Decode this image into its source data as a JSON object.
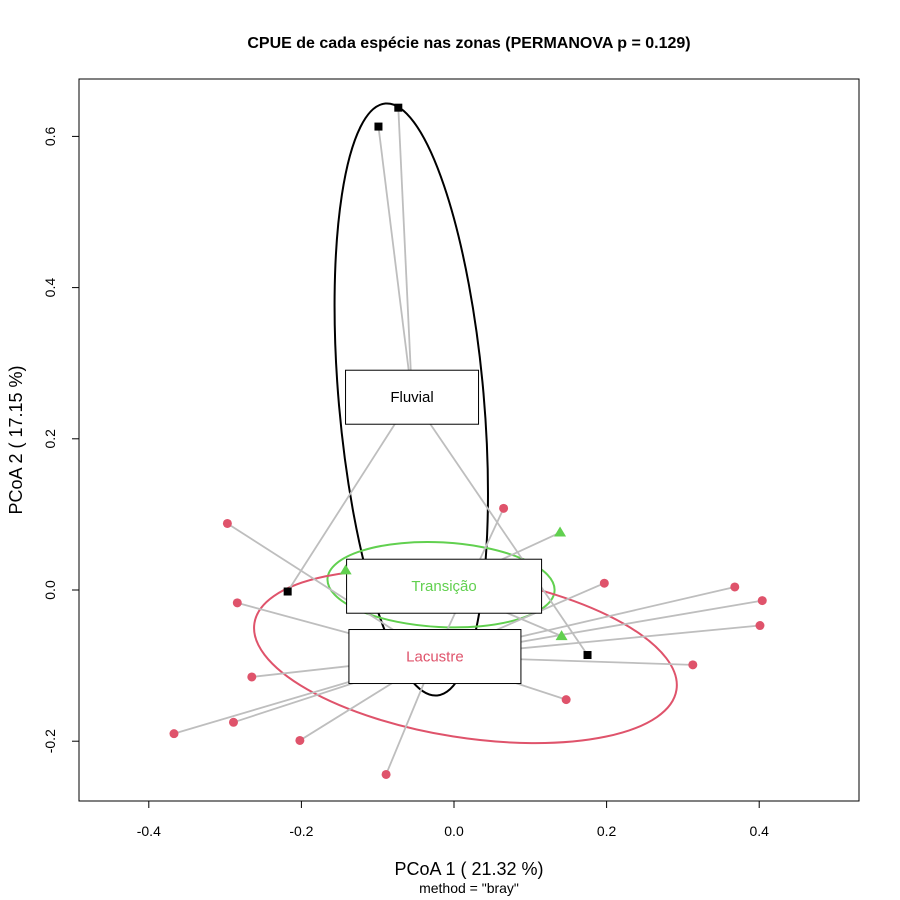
{
  "chart_data": {
    "type": "scatter",
    "title": "CPUE de cada espécie nas zonas (PERMANOVA p = 0.129)",
    "xlabel": "PCoA 1 ( 21.32 %)",
    "ylabel": "PCoA 2 ( 17.15 %)",
    "subtitle": "method = \"bray\"",
    "xlim": [
      -0.5,
      0.53
    ],
    "ylim": [
      -0.28,
      0.67
    ],
    "xticks": [
      -0.4,
      -0.2,
      0.0,
      0.2,
      0.4
    ],
    "yticks": [
      -0.2,
      0.0,
      0.2,
      0.4,
      0.6
    ],
    "xtick_labels": [
      "-0.4",
      "-0.2",
      "0.0",
      "0.2",
      "0.4"
    ],
    "ytick_labels": [
      "-0.2",
      "0.0",
      "0.2",
      "0.4",
      "0.6"
    ],
    "grid": false,
    "series": [
      {
        "name": "Fluvial",
        "color": "#000000",
        "marker": "square",
        "centroid": [
          -0.055,
          0.255
        ],
        "points": [
          [
            -0.073,
            0.638
          ],
          [
            -0.099,
            0.613
          ],
          [
            -0.218,
            -0.002
          ],
          [
            0.175,
            -0.086
          ]
        ],
        "ellipse": {
          "cx": -0.056,
          "cy": 0.252,
          "rx": 0.095,
          "ry": 0.393,
          "angle_deg": -5
        }
      },
      {
        "name": "Transição",
        "color": "#61D04F",
        "marker": "triangle",
        "centroid": [
          -0.013,
          0.005
        ],
        "points": [
          [
            -0.142,
            0.026
          ],
          [
            0.139,
            0.076
          ],
          [
            0.141,
            -0.061
          ]
        ],
        "ellipse": {
          "cx": -0.017,
          "cy": 0.007,
          "rx": 0.149,
          "ry": 0.056,
          "angle_deg": 3
        }
      },
      {
        "name": "Lacustre",
        "color": "#DF536B",
        "marker": "circle",
        "centroid": [
          -0.025,
          -0.088
        ],
        "points": [
          [
            -0.297,
            0.088
          ],
          [
            -0.284,
            -0.017
          ],
          [
            0.065,
            0.108
          ],
          [
            0.197,
            0.009
          ],
          [
            0.368,
            0.004
          ],
          [
            0.404,
            -0.014
          ],
          [
            0.401,
            -0.047
          ],
          [
            0.313,
            -0.099
          ],
          [
            0.147,
            -0.145
          ],
          [
            -0.265,
            -0.115
          ],
          [
            -0.289,
            -0.175
          ],
          [
            -0.367,
            -0.19
          ],
          [
            -0.202,
            -0.199
          ],
          [
            -0.089,
            -0.244
          ]
        ],
        "ellipse": {
          "cx": 0.015,
          "cy": -0.088,
          "rx": 0.28,
          "ry": 0.107,
          "angle_deg": 9
        }
      }
    ]
  }
}
